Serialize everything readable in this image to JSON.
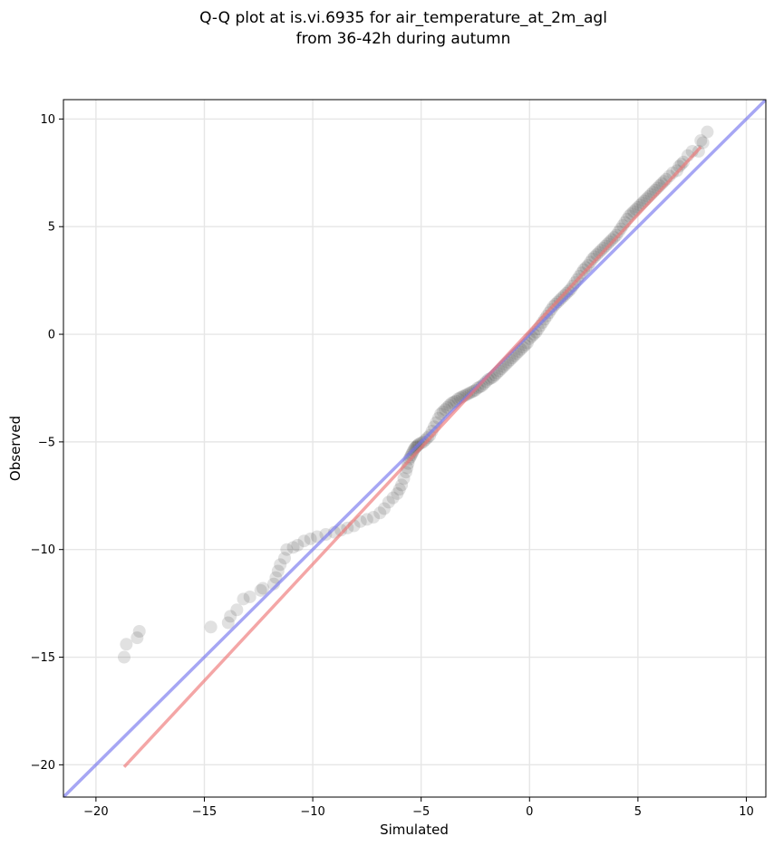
{
  "chart_data": {
    "type": "scatter",
    "title": "Q-Q plot at is.vi.6935 for air_temperature_at_2m_agl",
    "subtitle": "from 36-42h during autumn",
    "xlabel": "Simulated",
    "ylabel": "Observed",
    "xlim": [
      -21.5,
      10.9
    ],
    "ylim": [
      -21.5,
      10.9
    ],
    "xticks": [
      -20,
      -15,
      -10,
      -5,
      0,
      5,
      10
    ],
    "yticks": [
      -20,
      -15,
      -10,
      -5,
      0,
      5,
      10
    ],
    "xtick_labels": [
      "−20",
      "−15",
      "−10",
      "−5",
      "0",
      "5",
      "10"
    ],
    "ytick_labels": [
      "−20",
      "−15",
      "−10",
      "−5",
      "0",
      "5",
      "10"
    ],
    "grid": true,
    "colors": {
      "points": "#333333",
      "identity_line": "#7777ee",
      "fit_line": "#ee7777",
      "grid": "#e6e6e6"
    },
    "lines": [
      {
        "role": "identity",
        "x": [
          -21.5,
          10.9
        ],
        "y": [
          -21.5,
          10.9
        ]
      },
      {
        "role": "fit",
        "x": [
          -18.7,
          7.9
        ],
        "y": [
          -20.1,
          8.7
        ]
      }
    ],
    "points": [
      [
        -18.7,
        -15.0
      ],
      [
        -18.6,
        -14.4
      ],
      [
        -18.1,
        -14.1
      ],
      [
        -18.0,
        -13.8
      ],
      [
        -14.7,
        -13.6
      ],
      [
        -13.9,
        -13.4
      ],
      [
        -13.8,
        -13.1
      ],
      [
        -13.5,
        -12.8
      ],
      [
        -13.2,
        -12.3
      ],
      [
        -12.9,
        -12.2
      ],
      [
        -12.4,
        -11.9
      ],
      [
        -12.3,
        -11.8
      ],
      [
        -11.8,
        -11.6
      ],
      [
        -11.7,
        -11.3
      ],
      [
        -11.6,
        -11.0
      ],
      [
        -11.5,
        -10.7
      ],
      [
        -11.3,
        -10.4
      ],
      [
        -11.2,
        -10.0
      ],
      [
        -10.9,
        -9.9
      ],
      [
        -10.7,
        -9.8
      ],
      [
        -10.4,
        -9.6
      ],
      [
        -10.1,
        -9.5
      ],
      [
        -9.8,
        -9.4
      ],
      [
        -9.4,
        -9.3
      ],
      [
        -9.0,
        -9.2
      ],
      [
        -8.7,
        -9.1
      ],
      [
        -8.4,
        -9.0
      ],
      [
        -8.1,
        -8.9
      ],
      [
        -7.8,
        -8.7
      ],
      [
        -7.5,
        -8.6
      ],
      [
        -7.2,
        -8.5
      ],
      [
        -6.9,
        -8.3
      ],
      [
        -6.7,
        -8.1
      ],
      [
        -6.5,
        -7.8
      ],
      [
        -6.3,
        -7.6
      ],
      [
        -6.1,
        -7.4
      ],
      [
        -6.0,
        -7.2
      ],
      [
        -5.9,
        -7.0
      ],
      [
        -5.8,
        -6.7
      ],
      [
        -5.7,
        -6.4
      ],
      [
        -5.65,
        -6.2
      ],
      [
        -5.6,
        -6.0
      ],
      [
        -5.55,
        -5.8
      ],
      [
        -5.5,
        -5.7
      ],
      [
        -5.45,
        -5.6
      ],
      [
        -5.4,
        -5.5
      ],
      [
        -5.35,
        -5.4
      ],
      [
        -5.3,
        -5.3
      ],
      [
        -5.25,
        -5.25
      ],
      [
        -5.2,
        -5.2
      ],
      [
        -5.15,
        -5.15
      ],
      [
        -5.1,
        -5.1
      ],
      [
        -5.0,
        -5.05
      ],
      [
        -4.9,
        -5.0
      ],
      [
        -4.8,
        -4.9
      ],
      [
        -4.7,
        -4.8
      ],
      [
        -4.6,
        -4.7
      ],
      [
        -4.5,
        -4.5
      ],
      [
        -4.4,
        -4.3
      ],
      [
        -4.3,
        -4.1
      ],
      [
        -4.2,
        -3.9
      ],
      [
        -4.1,
        -3.7
      ],
      [
        -4.0,
        -3.6
      ],
      [
        -3.9,
        -3.5
      ],
      [
        -3.8,
        -3.4
      ],
      [
        -3.7,
        -3.3
      ],
      [
        -3.6,
        -3.2
      ],
      [
        -3.5,
        -3.15
      ],
      [
        -3.4,
        -3.1
      ],
      [
        -3.3,
        -3.0
      ],
      [
        -3.2,
        -2.95
      ],
      [
        -3.1,
        -2.9
      ],
      [
        -3.0,
        -2.85
      ],
      [
        -2.9,
        -2.8
      ],
      [
        -2.8,
        -2.75
      ],
      [
        -2.7,
        -2.7
      ],
      [
        -2.6,
        -2.65
      ],
      [
        -2.5,
        -2.6
      ],
      [
        -2.4,
        -2.5
      ],
      [
        -2.3,
        -2.45
      ],
      [
        -2.2,
        -2.4
      ],
      [
        -2.1,
        -2.3
      ],
      [
        -2.0,
        -2.2
      ],
      [
        -1.9,
        -2.1
      ],
      [
        -1.8,
        -2.05
      ],
      [
        -1.7,
        -2.0
      ],
      [
        -1.6,
        -1.9
      ],
      [
        -1.5,
        -1.8
      ],
      [
        -1.4,
        -1.7
      ],
      [
        -1.3,
        -1.6
      ],
      [
        -1.2,
        -1.5
      ],
      [
        -1.1,
        -1.4
      ],
      [
        -1.0,
        -1.3
      ],
      [
        -0.9,
        -1.2
      ],
      [
        -0.8,
        -1.1
      ],
      [
        -0.7,
        -1.0
      ],
      [
        -0.6,
        -0.9
      ],
      [
        -0.5,
        -0.8
      ],
      [
        -0.4,
        -0.7
      ],
      [
        -0.3,
        -0.6
      ],
      [
        -0.2,
        -0.5
      ],
      [
        -0.1,
        -0.4
      ],
      [
        0.0,
        -0.2
      ],
      [
        0.1,
        -0.1
      ],
      [
        0.2,
        0.0
      ],
      [
        0.3,
        0.1
      ],
      [
        0.4,
        0.25
      ],
      [
        0.5,
        0.4
      ],
      [
        0.6,
        0.55
      ],
      [
        0.7,
        0.7
      ],
      [
        0.8,
        0.85
      ],
      [
        0.9,
        1.0
      ],
      [
        1.0,
        1.15
      ],
      [
        1.1,
        1.3
      ],
      [
        1.2,
        1.4
      ],
      [
        1.3,
        1.5
      ],
      [
        1.4,
        1.6
      ],
      [
        1.5,
        1.7
      ],
      [
        1.6,
        1.8
      ],
      [
        1.7,
        1.9
      ],
      [
        1.8,
        2.0
      ],
      [
        1.9,
        2.1
      ],
      [
        2.0,
        2.25
      ],
      [
        2.1,
        2.4
      ],
      [
        2.2,
        2.55
      ],
      [
        2.3,
        2.7
      ],
      [
        2.4,
        2.85
      ],
      [
        2.5,
        3.0
      ],
      [
        2.6,
        3.1
      ],
      [
        2.7,
        3.2
      ],
      [
        2.8,
        3.35
      ],
      [
        2.9,
        3.5
      ],
      [
        3.0,
        3.6
      ],
      [
        3.1,
        3.7
      ],
      [
        3.2,
        3.8
      ],
      [
        3.3,
        3.9
      ],
      [
        3.4,
        4.0
      ],
      [
        3.5,
        4.1
      ],
      [
        3.6,
        4.2
      ],
      [
        3.7,
        4.3
      ],
      [
        3.8,
        4.4
      ],
      [
        3.9,
        4.5
      ],
      [
        4.0,
        4.6
      ],
      [
        4.1,
        4.75
      ],
      [
        4.2,
        4.9
      ],
      [
        4.3,
        5.05
      ],
      [
        4.4,
        5.2
      ],
      [
        4.5,
        5.35
      ],
      [
        4.6,
        5.5
      ],
      [
        4.7,
        5.6
      ],
      [
        4.8,
        5.7
      ],
      [
        4.9,
        5.8
      ],
      [
        5.0,
        5.9
      ],
      [
        5.1,
        6.0
      ],
      [
        5.2,
        6.1
      ],
      [
        5.3,
        6.2
      ],
      [
        5.4,
        6.3
      ],
      [
        5.5,
        6.4
      ],
      [
        5.6,
        6.5
      ],
      [
        5.7,
        6.6
      ],
      [
        5.8,
        6.7
      ],
      [
        5.9,
        6.8
      ],
      [
        6.0,
        6.9
      ],
      [
        6.1,
        7.0
      ],
      [
        6.2,
        7.1
      ],
      [
        6.3,
        7.2
      ],
      [
        6.45,
        7.35
      ],
      [
        6.6,
        7.5
      ],
      [
        6.8,
        7.6
      ],
      [
        6.9,
        7.8
      ],
      [
        7.0,
        7.9
      ],
      [
        7.1,
        8.0
      ],
      [
        7.3,
        8.3
      ],
      [
        7.5,
        8.5
      ],
      [
        7.8,
        8.5
      ],
      [
        7.9,
        9.0
      ],
      [
        8.0,
        8.9
      ],
      [
        8.2,
        9.4
      ]
    ]
  }
}
